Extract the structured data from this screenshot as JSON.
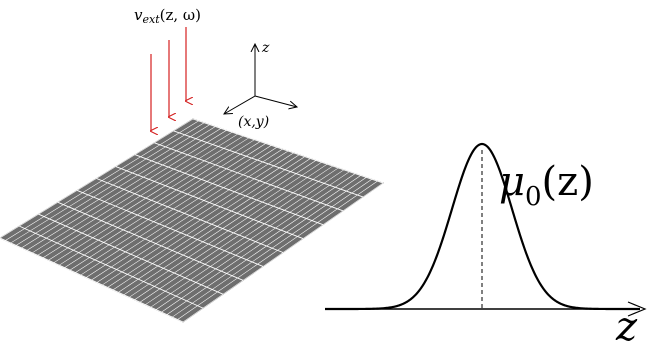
{
  "labels": {
    "potential_v": "v",
    "potential_sub": "ext",
    "potential_args": "(z, ω)",
    "axis_z": "z",
    "axis_xy": "(x,y)",
    "profile_mu": "μ",
    "profile_sub": "0",
    "profile_args": "(z)",
    "profile_axis": "z"
  },
  "colors": {
    "arrow": "#d42020",
    "axes": "#000000",
    "sheet_fill": "#6e6e6e",
    "sheet_grid": "#ffffff",
    "curve": "#000000"
  },
  "sheet": {
    "grid_u": 34,
    "grid_v": 10
  }
}
